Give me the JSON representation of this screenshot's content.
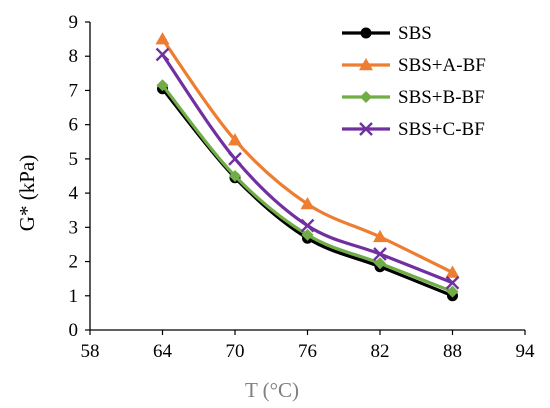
{
  "chart_data": {
    "type": "line",
    "xlabel": "T (°C)",
    "ylabel": "G* (kPa)",
    "xlim": [
      58,
      94
    ],
    "ylim": [
      0,
      9
    ],
    "x_ticks": [
      58,
      64,
      70,
      76,
      82,
      88,
      94
    ],
    "y_ticks": [
      0,
      1,
      2,
      3,
      4,
      5,
      6,
      7,
      8,
      9
    ],
    "grid": false,
    "legend_position": "top-right",
    "x": [
      64,
      70,
      76,
      82,
      88
    ],
    "series": [
      {
        "name": "SBS",
        "values": [
          7.05,
          4.45,
          2.68,
          1.85,
          1.0
        ],
        "color": "#000000",
        "marker": "circle"
      },
      {
        "name": "SBS+A-BF",
        "values": [
          8.5,
          5.55,
          3.68,
          2.72,
          1.68
        ],
        "color": "#ED7D31",
        "marker": "triangle"
      },
      {
        "name": "SBS+B-BF",
        "values": [
          7.15,
          4.5,
          2.78,
          1.95,
          1.12
        ],
        "color": "#70AD47",
        "marker": "diamond"
      },
      {
        "name": "SBS+C-BF",
        "values": [
          8.05,
          5.0,
          3.05,
          2.22,
          1.38
        ],
        "color": "#7030A0",
        "marker": "cross"
      }
    ],
    "axis_title_color": "#808080"
  }
}
